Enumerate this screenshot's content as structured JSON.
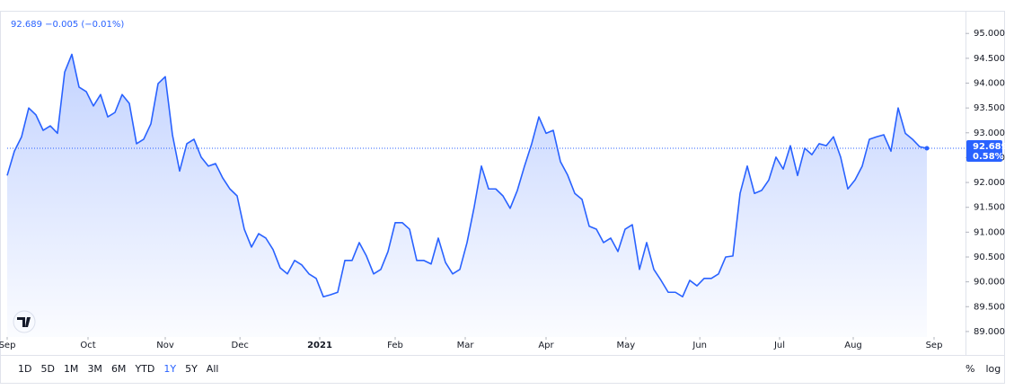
{
  "chart_data": {
    "type": "line",
    "title": "92.689 −0.005 (−0.01%)",
    "price_tag_change": "0.58%",
    "series": [
      {
        "color": "#2962ff",
        "values": [
          92.14,
          92.63,
          92.92,
          93.5,
          93.36,
          93.05,
          93.14,
          92.99,
          94.22,
          94.58,
          93.92,
          93.83,
          93.54,
          93.77,
          93.32,
          93.41,
          93.77,
          93.59,
          92.78,
          92.87,
          93.18,
          93.99,
          94.13,
          92.96,
          92.23,
          92.78,
          92.87,
          92.51,
          92.33,
          92.38,
          92.09,
          91.87,
          91.73,
          91.06,
          90.7,
          90.97,
          90.88,
          90.65,
          90.28,
          90.16,
          90.43,
          90.34,
          90.16,
          90.07,
          89.7,
          89.74,
          89.79,
          90.43,
          90.43,
          90.79,
          90.52,
          90.16,
          90.25,
          90.61,
          91.19,
          91.19,
          91.06,
          90.43,
          90.43,
          90.36,
          90.88,
          90.39,
          90.16,
          90.25,
          90.79,
          91.51,
          92.33,
          91.87,
          91.87,
          91.73,
          91.48,
          91.84,
          92.33,
          92.78,
          93.32,
          92.99,
          93.05,
          92.42,
          92.15,
          91.78,
          91.66,
          91.12,
          91.06,
          90.79,
          90.88,
          90.61,
          91.06,
          91.15,
          90.25,
          90.79,
          90.25,
          90.03,
          89.79,
          89.79,
          89.7,
          90.03,
          89.92,
          90.07,
          90.07,
          90.16,
          90.5,
          90.52,
          91.78,
          92.33,
          91.78,
          91.84,
          92.05,
          92.51,
          92.27,
          92.74,
          92.14,
          92.69,
          92.56,
          92.78,
          92.74,
          92.92,
          92.51,
          91.87,
          92.05,
          92.33,
          92.87,
          92.92,
          92.96,
          92.63,
          93.5,
          92.99,
          92.87,
          92.72,
          92.689
        ]
      }
    ],
    "xlim": [
      0,
      133.375
    ],
    "xticks": [
      {
        "value": 0,
        "label": "Sep"
      },
      {
        "value": 11.25,
        "label": "Oct"
      },
      {
        "value": 22,
        "label": "Nov"
      },
      {
        "value": 32.4,
        "label": "Dec"
      },
      {
        "value": 43.5,
        "label": "2021"
      },
      {
        "value": 54,
        "label": "Feb"
      },
      {
        "value": 63.75,
        "label": "Mar"
      },
      {
        "value": 75,
        "label": "Apr"
      },
      {
        "value": 86.1,
        "label": "May"
      },
      {
        "value": 96.4,
        "label": "Jun"
      },
      {
        "value": 107.5,
        "label": "Jul"
      },
      {
        "value": 117.75,
        "label": "Aug"
      },
      {
        "value": 129,
        "label": "Sep"
      }
    ],
    "ylim": [
      88.89,
      95.42
    ],
    "yticks": [
      {
        "value": 95,
        "label": "95.000"
      },
      {
        "value": 94.5,
        "label": "94.500"
      },
      {
        "value": 94,
        "label": "94.000"
      },
      {
        "value": 93.5,
        "label": "93.500"
      },
      {
        "value": 93,
        "label": "93.000"
      },
      {
        "value": 92.5,
        "label": "92.500"
      },
      {
        "value": 92,
        "label": "92.000"
      },
      {
        "value": 91.5,
        "label": "91.500"
      },
      {
        "value": 91,
        "label": "91.000"
      },
      {
        "value": 90.5,
        "label": "90.500"
      },
      {
        "value": 90,
        "label": "90.000"
      },
      {
        "value": 89.5,
        "label": "89.500"
      },
      {
        "value": 89,
        "label": "89.000"
      }
    ],
    "range_buttons": [
      "1D",
      "5D",
      "1M",
      "3M",
      "6M",
      "YTD",
      "1Y",
      "5Y",
      "All"
    ],
    "selected_range_index": 6,
    "scale_buttons": [
      "%",
      "log"
    ]
  }
}
